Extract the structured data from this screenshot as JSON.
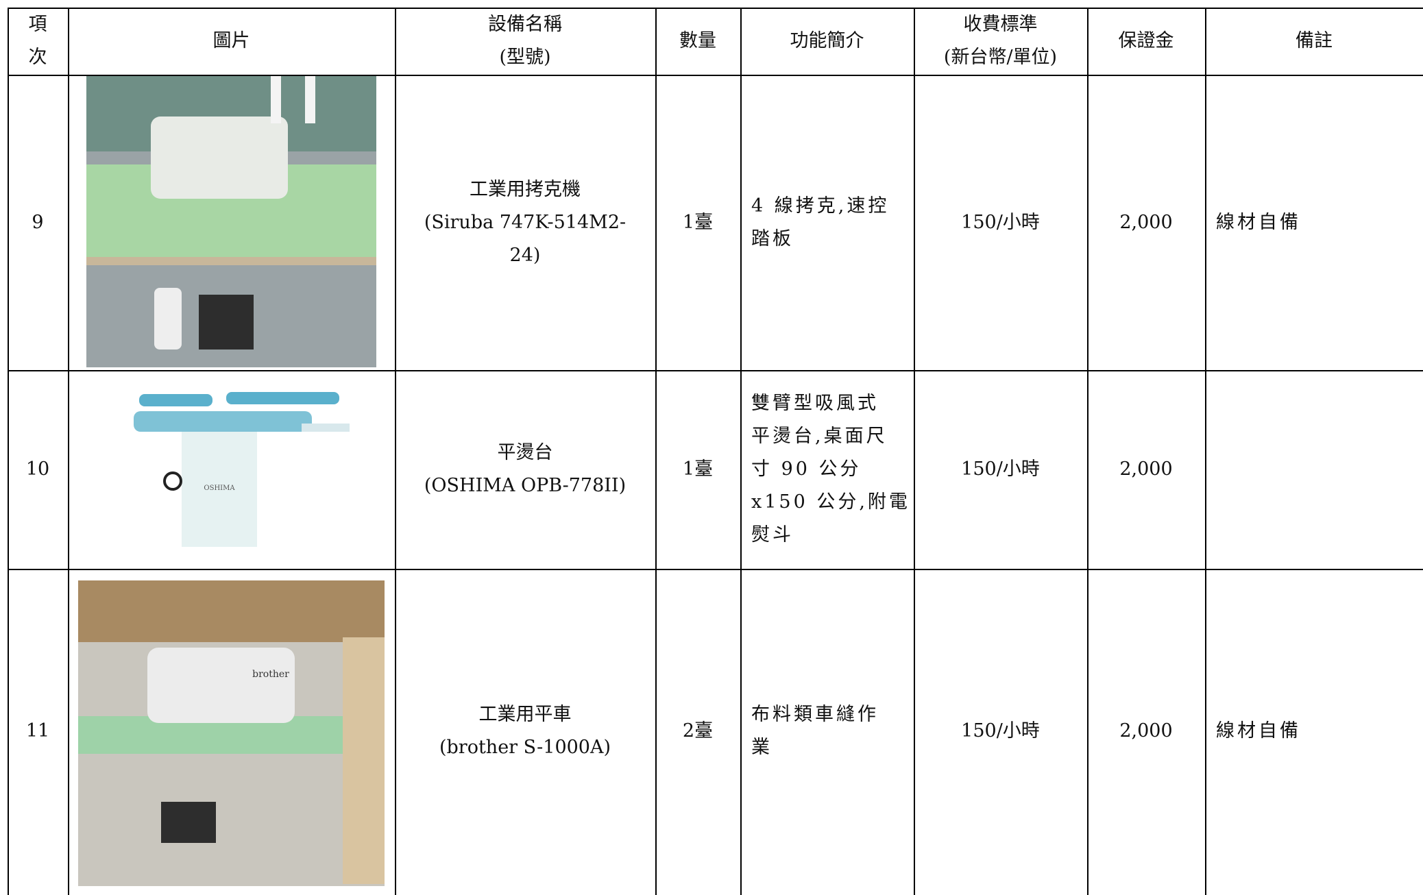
{
  "table": {
    "header": [
      [
        "項",
        "次"
      ],
      [
        "圖片"
      ],
      [
        "設備名稱",
        "(型號)"
      ],
      [
        "數量"
      ],
      [
        "功能簡介"
      ],
      [
        "收費標準",
        "(新台幣/單位)"
      ],
      [
        "保證金"
      ],
      [
        "備註"
      ]
    ],
    "rows": [
      {
        "no": "9",
        "name": [
          "工業用拷克機",
          "(Siruba 747K-514M2-",
          "24)"
        ],
        "qty": "1臺",
        "desc": [
          "4 線拷克,速控",
          "踏板"
        ],
        "fee": "150/小時",
        "deposit": "2,000",
        "note": "線材自備"
      },
      {
        "no": "10",
        "name": [
          "平燙台",
          "(OSHIMA OPB-778II)"
        ],
        "qty": "1臺",
        "desc": [
          "雙臂型吸風式",
          "平燙台,桌面尺",
          "寸 90 公分",
          "x150 公分,附電",
          "熨斗"
        ],
        "fee": "150/小時",
        "deposit": "2,000"
      },
      {
        "no": "11",
        "name": [
          "工業用平車",
          "(brother S-1000A)"
        ],
        "qty": "2臺",
        "desc": [
          "布料類車縫作",
          "業"
        ],
        "fee": "150/小時",
        "deposit": "2,000",
        "note": "線材自備"
      }
    ]
  }
}
